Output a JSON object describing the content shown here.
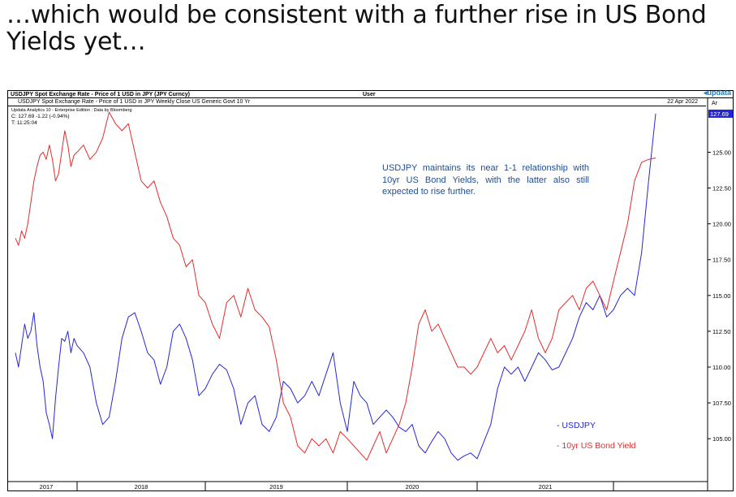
{
  "headline": "…which would be consistent with a further rise in US Bond Yields yet…",
  "panel": {
    "title": "USDJPY Spot Exchange Rate - Price of 1 USD in JPY (JPY Curncy)",
    "user": "User",
    "logo": "updata",
    "subtitle": "USDJPY Spot Exchange Rate - Price of 1 USD in JPY Weekly Close   US Generic Govt 10 Yr",
    "date": "22 Apr 2022",
    "axis_tag": "Ar",
    "edition": "Updata Analytics 10 - Enterprise Edition : Data by Bloomberg",
    "close_line": "C: 127.69  -1.22 (-0.94%)",
    "time_line": "T: 11:25:04",
    "last_value_badge": "127.69"
  },
  "annotation": "USDJPY maintains its near 1-1 relationship with 10yr US Bond Yields, with the latter also still expected to rise further.",
  "legend": {
    "usdjpy": "- USDJPY",
    "bond": "- 10yr US Bond Yield"
  },
  "colors": {
    "usdjpy": "#2626d9",
    "bond": "#e52b2b",
    "annotation": "#1f4e96",
    "badge": "#2626d9"
  },
  "chart_data": {
    "type": "line",
    "ylim": [
      102.8,
      128.2
    ],
    "yticks": [
      "105.00",
      "107.50",
      "110.00",
      "112.50",
      "115.00",
      "117.50",
      "120.00",
      "122.50",
      "125.00"
    ],
    "x_axis_labels": [
      "2017",
      "2018",
      "2019",
      "2020",
      "2021"
    ],
    "series": [
      {
        "name": "USDJPY",
        "x": [
          2017.0,
          2017.05,
          2017.1,
          2017.15,
          2017.2,
          2017.25,
          2017.3,
          2017.35,
          2017.4,
          2017.45,
          2017.5,
          2017.55,
          2017.6,
          2017.65,
          2017.7,
          2017.75,
          2017.8,
          2017.85,
          2017.9,
          2017.95,
          2018.0,
          2018.05,
          2018.1,
          2018.15,
          2018.2,
          2018.25,
          2018.3,
          2018.35,
          2018.4,
          2018.45,
          2018.5,
          2018.55,
          2018.6,
          2018.65,
          2018.7,
          2018.75,
          2018.8,
          2018.85,
          2018.9,
          2018.95,
          2019.0,
          2019.05,
          2019.1,
          2019.15,
          2019.2,
          2019.25,
          2019.3,
          2019.35,
          2019.4,
          2019.45,
          2019.5,
          2019.55,
          2019.6,
          2019.65,
          2019.7,
          2019.75,
          2019.8,
          2019.85,
          2019.9,
          2019.95,
          2020.0,
          2020.05,
          2020.1,
          2020.15,
          2020.2,
          2020.25,
          2020.3,
          2020.35,
          2020.4,
          2020.45,
          2020.5,
          2020.55,
          2020.6,
          2020.65,
          2020.7,
          2020.75,
          2020.8,
          2020.85,
          2020.9,
          2020.95,
          2021.0,
          2021.05,
          2021.1,
          2021.15,
          2021.2,
          2021.25,
          2021.3,
          2021.35,
          2021.4,
          2021.45,
          2021.5,
          2021.55,
          2021.6,
          2021.65,
          2021.7,
          2021.75,
          2021.8,
          2021.85,
          2021.9,
          2021.95,
          2022.0,
          2022.05,
          2022.1,
          2022.15,
          2022.2,
          2022.25,
          2022.3
        ],
        "values": [
          111.0,
          110.0,
          111.5,
          113.0,
          112.0,
          112.5,
          113.8,
          111.5,
          110.0,
          109.0,
          106.8,
          106.0,
          105.0,
          107.8,
          110.0,
          112.0,
          111.8,
          112.5,
          111.0,
          112.0,
          111.5,
          111.0,
          110.0,
          107.5,
          106.0,
          106.5,
          109.0,
          112.0,
          113.5,
          113.8,
          112.5,
          111.0,
          110.5,
          108.8,
          110.0,
          112.5,
          113.0,
          112.0,
          110.5,
          108.0,
          108.5,
          109.5,
          110.2,
          109.8,
          108.5,
          106.0,
          107.5,
          108.0,
          106.0,
          105.5,
          106.5,
          109.0,
          108.5,
          107.5,
          108.0,
          109.0,
          108.0,
          109.5,
          111.0,
          107.5,
          105.5,
          109.0,
          108.0,
          107.5,
          106.0,
          106.5,
          107.0,
          106.5,
          105.8,
          105.5,
          106.0,
          104.5,
          104.0,
          104.8,
          105.5,
          105.0,
          104.0,
          103.5,
          103.8,
          104.0,
          103.6,
          104.8,
          106.0,
          108.5,
          110.0,
          109.5,
          110.0,
          109.0,
          110.0,
          111.0,
          110.5,
          109.8,
          110.0,
          111.0,
          112.0,
          113.5,
          114.5,
          114.0,
          115.0,
          113.5,
          114.0,
          115.0,
          115.5,
          115.0,
          118.0,
          123.0,
          127.69
        ]
      },
      {
        "name": "10yr US Bond Yield",
        "x": [
          2017.0,
          2017.05,
          2017.1,
          2017.15,
          2017.2,
          2017.25,
          2017.3,
          2017.35,
          2017.4,
          2017.45,
          2017.5,
          2017.55,
          2017.6,
          2017.65,
          2017.7,
          2017.75,
          2017.8,
          2017.85,
          2017.9,
          2017.95,
          2018.0,
          2018.05,
          2018.1,
          2018.15,
          2018.2,
          2018.25,
          2018.3,
          2018.35,
          2018.4,
          2018.45,
          2018.5,
          2018.55,
          2018.6,
          2018.65,
          2018.7,
          2018.75,
          2018.8,
          2018.85,
          2018.9,
          2018.95,
          2019.0,
          2019.05,
          2019.1,
          2019.15,
          2019.2,
          2019.25,
          2019.3,
          2019.35,
          2019.4,
          2019.45,
          2019.5,
          2019.55,
          2019.6,
          2019.65,
          2019.7,
          2019.75,
          2019.8,
          2019.85,
          2019.9,
          2019.95,
          2020.0,
          2020.05,
          2020.1,
          2020.15,
          2020.2,
          2020.25,
          2020.3,
          2020.35,
          2020.4,
          2020.45,
          2020.5,
          2020.55,
          2020.6,
          2020.65,
          2020.7,
          2020.75,
          2020.8,
          2020.85,
          2020.9,
          2020.95,
          2021.0,
          2021.05,
          2021.1,
          2021.15,
          2021.2,
          2021.25,
          2021.3,
          2021.35,
          2021.4,
          2021.45,
          2021.5,
          2021.55,
          2021.6,
          2021.65,
          2021.7,
          2021.75,
          2021.8,
          2021.85,
          2021.9,
          2021.95,
          2022.0,
          2022.05,
          2022.1,
          2022.15,
          2022.2,
          2022.25,
          2022.3
        ],
        "values": [
          119.0,
          118.5,
          119.5,
          119.0,
          120.0,
          121.5,
          123.0,
          124.0,
          124.8,
          125.0,
          124.5,
          125.5,
          124.5,
          123.0,
          123.5,
          125.0,
          126.5,
          125.5,
          124.0,
          124.8,
          125.0,
          125.5,
          124.5,
          125.0,
          126.0,
          127.8,
          127.0,
          126.5,
          127.0,
          125.0,
          123.0,
          122.5,
          123.0,
          121.5,
          120.5,
          119.0,
          118.5,
          117.0,
          117.5,
          115.0,
          114.5,
          113.0,
          112.0,
          114.5,
          115.0,
          113.5,
          115.5,
          114.0,
          113.5,
          112.8,
          110.5,
          107.5,
          106.5,
          104.5,
          104.0,
          105.0,
          104.5,
          105.0,
          104.0,
          105.5,
          105.0,
          104.5,
          104.0,
          103.5,
          104.5,
          105.5,
          104.0,
          105.0,
          106.0,
          107.5,
          110.0,
          113.0,
          114.0,
          112.5,
          113.0,
          112.0,
          111.0,
          110.0,
          110.0,
          109.5,
          110.0,
          111.0,
          112.0,
          111.0,
          111.5,
          110.5,
          111.5,
          112.5,
          114.0,
          112.0,
          111.0,
          112.0,
          114.0,
          114.5,
          115.0,
          114.0,
          115.5,
          116.0,
          115.0,
          114.0,
          116.0,
          118.0,
          120.0,
          123.0,
          124.3,
          124.5,
          124.6
        ]
      }
    ]
  }
}
